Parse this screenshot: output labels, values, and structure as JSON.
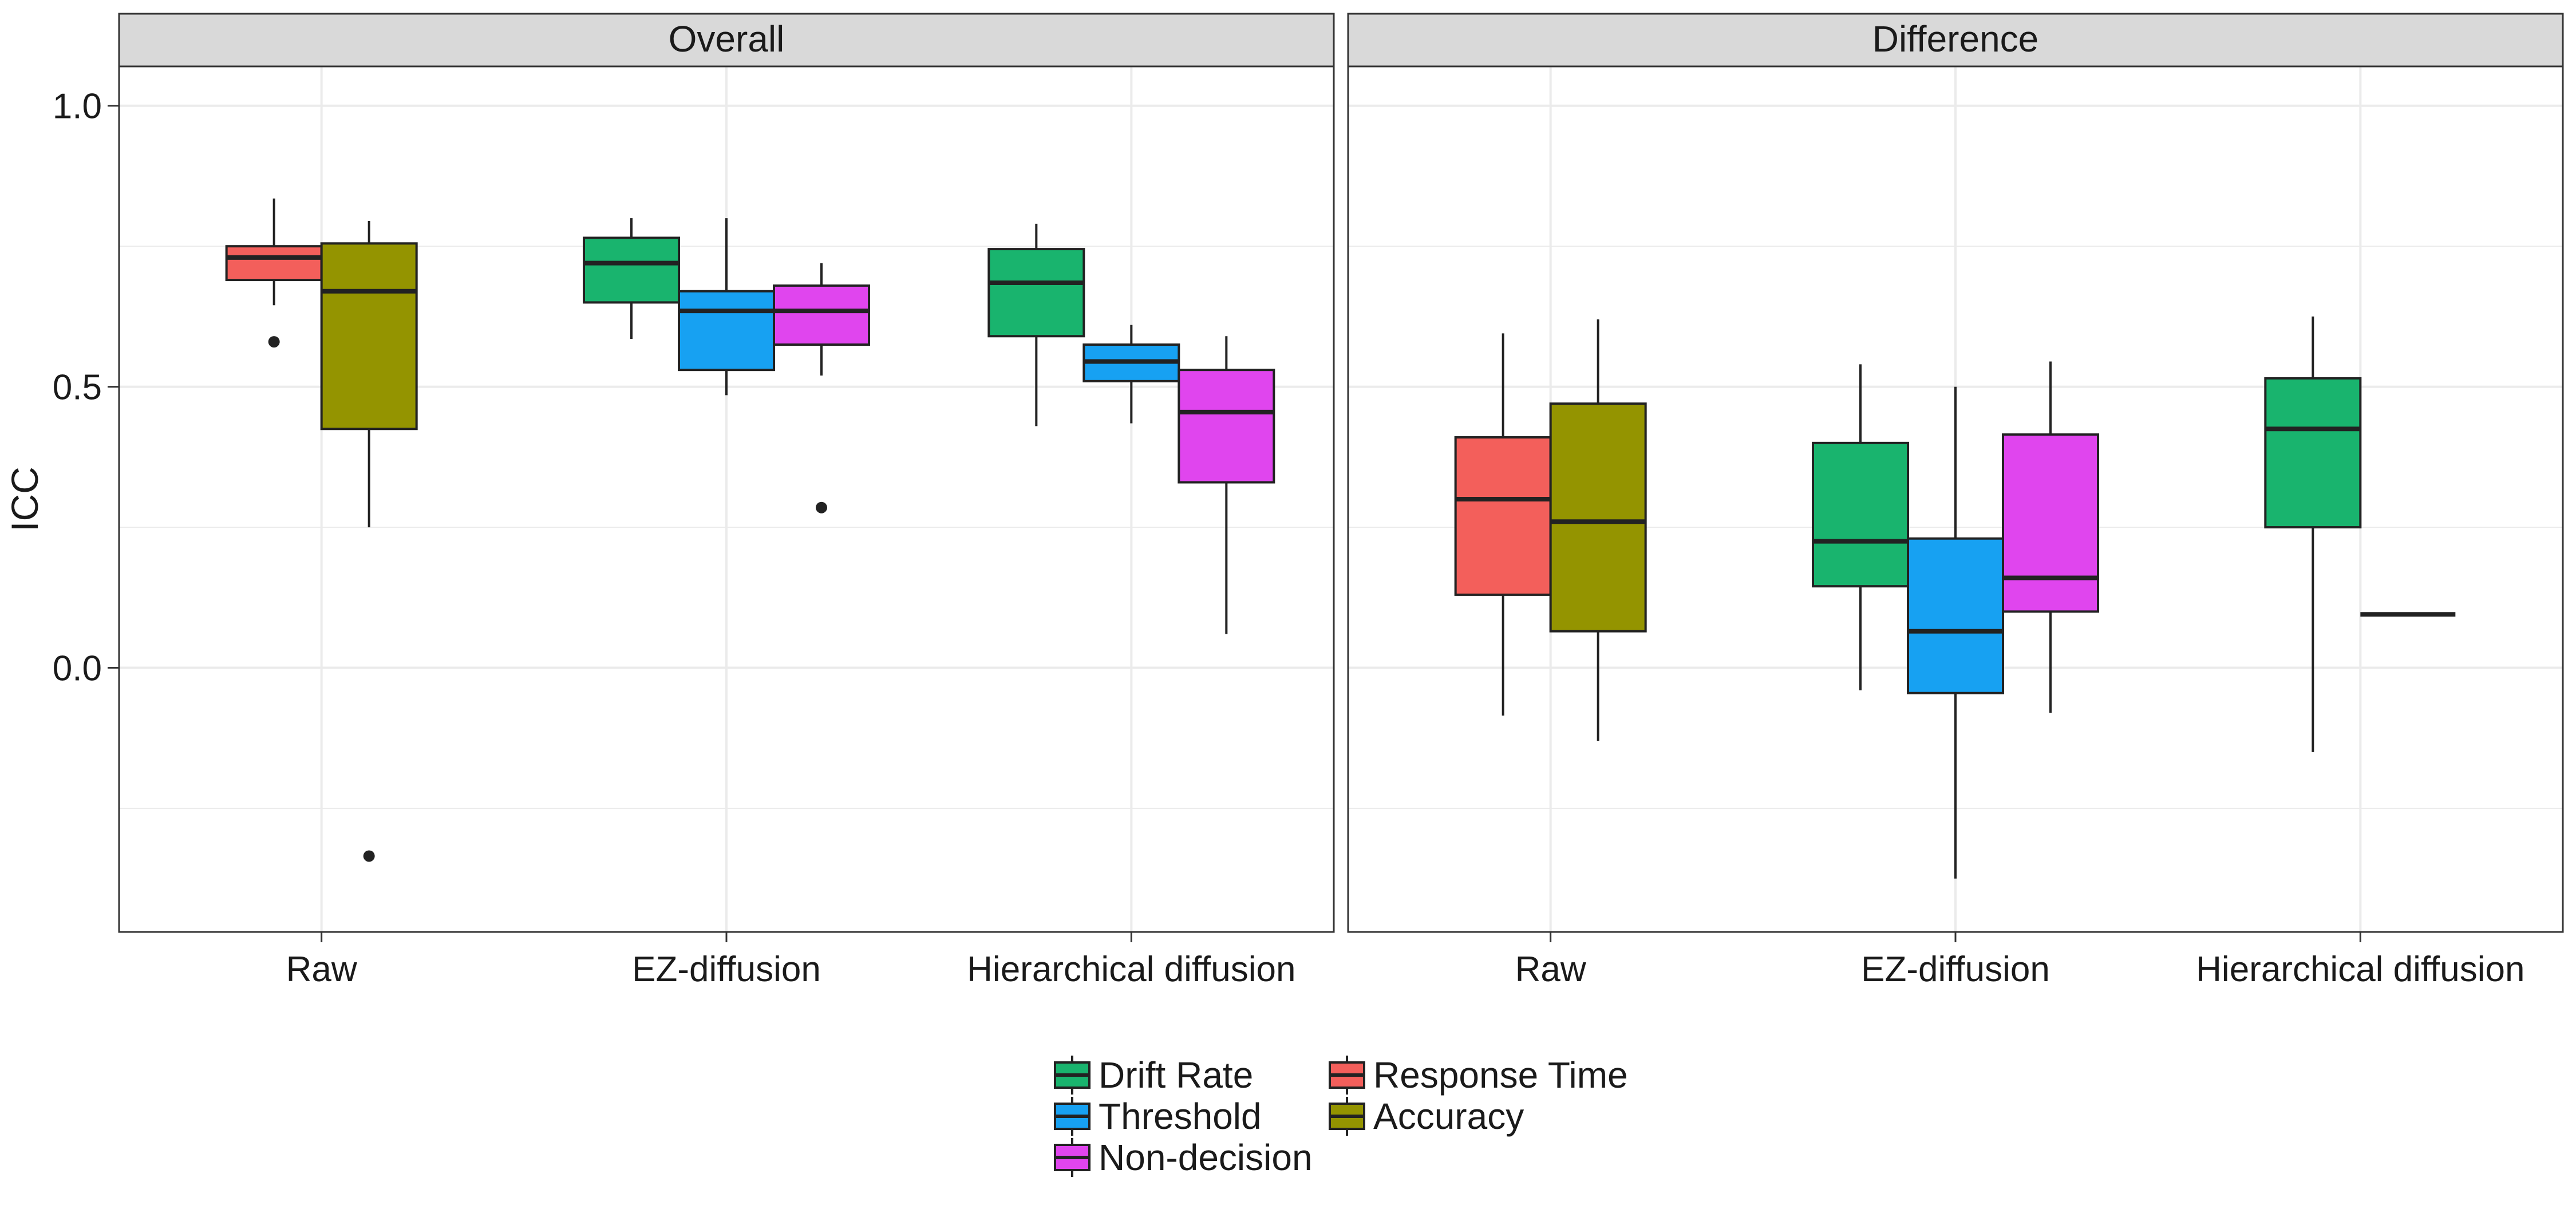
{
  "chart_data": {
    "type": "boxplot",
    "ylabel": "ICC",
    "ylim": [
      -0.47,
      1.07
    ],
    "yticks": [
      "1.0",
      "0.5",
      "0.0"
    ],
    "ytick_values": [
      1.0,
      0.5,
      0.0
    ],
    "categories": [
      "Raw",
      "EZ-diffusion",
      "Hierarchical diffusion"
    ],
    "grid": "on",
    "legend_placement": "bottom",
    "series_colors": {
      "Drift Rate": "#19b46e",
      "Threshold": "#17a1f2",
      "Non-decision": "#e045ee",
      "Response Time": "#f35f5b",
      "Accuracy": "#949400"
    },
    "legend": {
      "columns": [
        [
          "Drift Rate",
          "Threshold",
          "Non-decision"
        ],
        [
          "Response Time",
          "Accuracy"
        ]
      ]
    },
    "panels": [
      {
        "title": "Overall",
        "groups": [
          {
            "category": "Raw",
            "boxes": [
              {
                "series": "Response Time",
                "lower_whisker": 0.645,
                "q1": 0.69,
                "median": 0.73,
                "q3": 0.75,
                "upper_whisker": 0.835,
                "outliers": [
                  0.58
                ]
              },
              {
                "series": "Accuracy",
                "lower_whisker": 0.25,
                "q1": 0.425,
                "median": 0.67,
                "q3": 0.755,
                "upper_whisker": 0.795,
                "outliers": [
                  -0.335
                ]
              }
            ]
          },
          {
            "category": "EZ-diffusion",
            "boxes": [
              {
                "series": "Drift Rate",
                "lower_whisker": 0.585,
                "q1": 0.65,
                "median": 0.72,
                "q3": 0.765,
                "upper_whisker": 0.8,
                "outliers": []
              },
              {
                "series": "Threshold",
                "lower_whisker": 0.485,
                "q1": 0.53,
                "median": 0.635,
                "q3": 0.67,
                "upper_whisker": 0.8,
                "outliers": []
              },
              {
                "series": "Non-decision",
                "lower_whisker": 0.52,
                "q1": 0.575,
                "median": 0.635,
                "q3": 0.68,
                "upper_whisker": 0.72,
                "outliers": [
                  0.285
                ]
              }
            ]
          },
          {
            "category": "Hierarchical diffusion",
            "boxes": [
              {
                "series": "Drift Rate",
                "lower_whisker": 0.43,
                "q1": 0.59,
                "median": 0.685,
                "q3": 0.745,
                "upper_whisker": 0.79,
                "outliers": []
              },
              {
                "series": "Threshold",
                "lower_whisker": 0.435,
                "q1": 0.51,
                "median": 0.545,
                "q3": 0.575,
                "upper_whisker": 0.61,
                "outliers": []
              },
              {
                "series": "Non-decision",
                "lower_whisker": 0.06,
                "q1": 0.33,
                "median": 0.455,
                "q3": 0.53,
                "upper_whisker": 0.59,
                "outliers": []
              }
            ]
          }
        ]
      },
      {
        "title": "Difference",
        "groups": [
          {
            "category": "Raw",
            "boxes": [
              {
                "series": "Response Time",
                "lower_whisker": -0.085,
                "q1": 0.13,
                "median": 0.3,
                "q3": 0.41,
                "upper_whisker": 0.595,
                "outliers": []
              },
              {
                "series": "Accuracy",
                "lower_whisker": -0.13,
                "q1": 0.065,
                "median": 0.26,
                "q3": 0.47,
                "upper_whisker": 0.62,
                "outliers": []
              }
            ]
          },
          {
            "category": "EZ-diffusion",
            "boxes": [
              {
                "series": "Drift Rate",
                "lower_whisker": -0.04,
                "q1": 0.145,
                "median": 0.225,
                "q3": 0.4,
                "upper_whisker": 0.54,
                "outliers": []
              },
              {
                "series": "Threshold",
                "lower_whisker": -0.375,
                "q1": -0.045,
                "median": 0.065,
                "q3": 0.23,
                "upper_whisker": 0.5,
                "outliers": []
              },
              {
                "series": "Non-decision",
                "lower_whisker": -0.08,
                "q1": 0.1,
                "median": 0.16,
                "q3": 0.415,
                "upper_whisker": 0.545,
                "outliers": []
              }
            ]
          },
          {
            "category": "Hierarchical diffusion",
            "boxes": [
              {
                "series": "Drift Rate",
                "lower_whisker": -0.15,
                "q1": 0.25,
                "median": 0.425,
                "q3": 0.515,
                "upper_whisker": 0.625,
                "outliers": []
              },
              {
                "series": "Threshold",
                "lower_whisker": 0.095,
                "q1": 0.095,
                "median": 0.095,
                "q3": 0.095,
                "upper_whisker": 0.095,
                "outliers": []
              }
            ]
          }
        ]
      }
    ]
  }
}
